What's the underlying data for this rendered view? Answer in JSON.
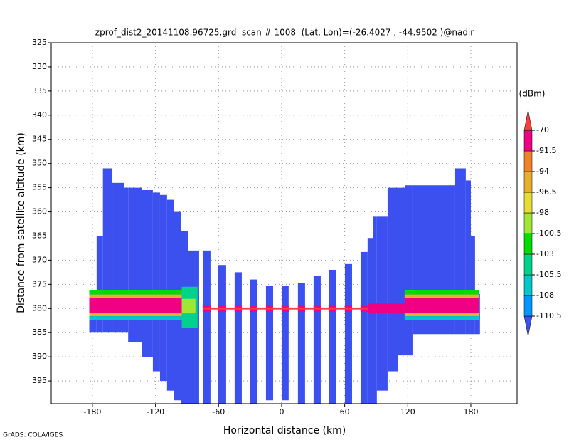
{
  "chart_data": {
    "type": "heatmap",
    "title": "zprof_dist2_20141108.96725.grd  scan # 1008  (Lat, Lon)=(-26.4027 , -44.9502 )@nadir",
    "xlabel": "Horizontal distance (km)",
    "ylabel": "Distance from satellite altitude (km)",
    "colorbar_label": "(dBm)",
    "footer": "GrADS: COLA/IGES",
    "xlim": [
      -219.2,
      224
    ],
    "xticks": [
      -180,
      -120,
      -60,
      0,
      60,
      120,
      180
    ],
    "ylim": [
      325,
      399.7
    ],
    "yticks": [
      325,
      330,
      335,
      340,
      345,
      350,
      355,
      360,
      365,
      370,
      375,
      380,
      385,
      390,
      395
    ],
    "y_inverted": true,
    "grid": true,
    "levels": [
      -110.5,
      -108,
      -105.5,
      -103,
      -100.5,
      -98,
      -96.5,
      -94,
      -91.5,
      -70
    ],
    "colors": [
      "#3c50f0",
      "#0096ff",
      "#00c8c8",
      "#00d28c",
      "#00dc00",
      "#a0e632",
      "#e6dc32",
      "#e6af2d",
      "#f08228",
      "#f00082",
      "#fa3c3c"
    ],
    "cells": [
      [
        -183,
        -176,
        377,
        385,
        -112
      ],
      [
        -176,
        -170,
        365,
        385,
        -112
      ],
      [
        -170,
        -161,
        351,
        385,
        -112
      ],
      [
        -161,
        -150,
        354,
        385,
        -112
      ],
      [
        -150,
        -146,
        355,
        385,
        -112
      ],
      [
        -146,
        -133,
        355,
        387,
        -112
      ],
      [
        -133,
        -122.5,
        355.5,
        390,
        -112
      ],
      [
        -122.5,
        -115.7,
        356,
        393,
        -112
      ],
      [
        -115.7,
        -109,
        356.5,
        395,
        -112
      ],
      [
        -109,
        -102.2,
        357.5,
        397,
        -112
      ],
      [
        -102.2,
        -95.4,
        360,
        399,
        -112
      ],
      [
        -95.4,
        -88.7,
        364,
        399.7,
        -112
      ],
      [
        -88.7,
        -78.5,
        368,
        399.7,
        -112
      ],
      [
        -75.1,
        -67.7,
        368,
        399.7,
        -112
      ],
      [
        -60.2,
        -52.8,
        371,
        399.7,
        -112
      ],
      [
        -44.7,
        -37.9,
        372.5,
        399.7,
        -112
      ],
      [
        -29.8,
        -23,
        374,
        399.7,
        -112
      ],
      [
        -14.9,
        -8.1,
        375.3,
        399,
        -112
      ],
      [
        0,
        6.7,
        375.3,
        399,
        -112
      ],
      [
        15.5,
        22.3,
        374.7,
        399.7,
        -112
      ],
      [
        30.4,
        37.2,
        373.2,
        399.7,
        -112
      ],
      [
        45.3,
        52.1,
        372,
        399.7,
        -112
      ],
      [
        60.2,
        67,
        370.8,
        399.7,
        -112
      ],
      [
        75.1,
        81.8,
        368.3,
        399.7,
        -112
      ],
      [
        81.8,
        87.3,
        365.4,
        399.7,
        -112
      ],
      [
        87.3,
        90.6,
        361,
        399.7,
        -112
      ],
      [
        90.6,
        100.8,
        361,
        397,
        -112
      ],
      [
        100.8,
        110.9,
        355,
        393,
        -112
      ],
      [
        110.9,
        117.7,
        355,
        389.7,
        -112
      ],
      [
        117.7,
        124.5,
        354.5,
        389.7,
        -112
      ],
      [
        124.5,
        165.1,
        354.5,
        385.3,
        -112
      ],
      [
        165.1,
        175.2,
        351,
        385.3,
        -112
      ],
      [
        175.2,
        180,
        353.5,
        385.3,
        -112
      ],
      [
        180,
        184,
        365,
        385.3,
        -112
      ],
      [
        184,
        188.7,
        377,
        385.3,
        -112
      ],
      [
        -183,
        -95,
        376.2,
        377.1,
        -102
      ],
      [
        -183,
        -95,
        377.1,
        377.9,
        -95
      ],
      [
        -183,
        -95,
        377.9,
        380.9,
        -85
      ],
      [
        -183,
        -95,
        380.9,
        381.6,
        -95
      ],
      [
        -183,
        -95,
        381.6,
        382.4,
        -107
      ],
      [
        -95,
        -80,
        375.5,
        384,
        -104
      ],
      [
        -95,
        -82,
        378,
        381,
        -99
      ],
      [
        -75.1,
        -67.7,
        379.3,
        380.7,
        -85
      ],
      [
        -60.2,
        -52.8,
        379.3,
        380.7,
        -85
      ],
      [
        -44.7,
        -37.9,
        379.3,
        380.7,
        -85
      ],
      [
        -29.8,
        -23,
        379.3,
        380.7,
        -85
      ],
      [
        -14.9,
        -8.1,
        379.3,
        380.7,
        -85
      ],
      [
        0,
        6.7,
        379.3,
        380.7,
        -85
      ],
      [
        15.5,
        22.3,
        379.3,
        380.7,
        -85
      ],
      [
        30.4,
        37.2,
        379.3,
        380.7,
        -85
      ],
      [
        45.3,
        52.1,
        379.3,
        380.7,
        -85
      ],
      [
        60.2,
        67,
        379.3,
        380.7,
        -85
      ],
      [
        75.1,
        81.8,
        379.3,
        380.7,
        -85
      ],
      [
        -75.1,
        81.8,
        379.8,
        380.2,
        -65
      ],
      [
        82,
        117,
        378.8,
        381,
        -88
      ],
      [
        117,
        188,
        376.2,
        377.1,
        -102
      ],
      [
        117,
        188,
        377.1,
        377.9,
        -95
      ],
      [
        117,
        188,
        377.9,
        380.9,
        -85
      ],
      [
        117,
        188,
        380.9,
        381.6,
        -95
      ],
      [
        117,
        188,
        381.6,
        382.4,
        -107
      ]
    ]
  }
}
